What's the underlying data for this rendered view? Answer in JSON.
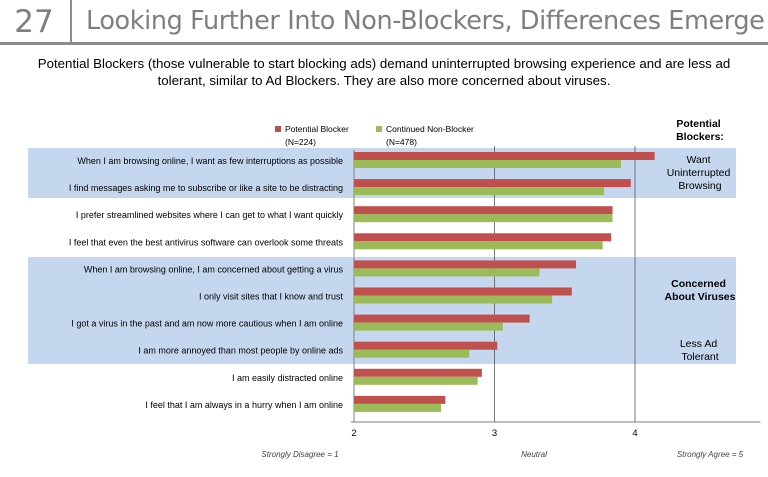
{
  "slide": {
    "number": "27",
    "title": "Looking Further Into Non-Blockers, Differences Emerge",
    "subtitle_lines": [
      "Potential Blockers (those vulnerable to start blocking ads) demand uninterrupted browsing experience and are less ad",
      "tolerant, similar to Ad Blockers.  They are also more concerned about viruses."
    ]
  },
  "colors": {
    "potential_blocker": "#c0504d",
    "continued_non_blocker": "#9bbb59",
    "highlight_band": "#c5d7ee",
    "header_gray": "#7f7f7f"
  },
  "chart_data": {
    "type": "bar",
    "orientation": "horizontal",
    "categories": [
      "When I am browsing online, I want as few interruptions as possible",
      "I find messages asking me to subscribe or like a site to be distracting",
      "I prefer streamlined websites where I can get to what I want quickly",
      "I feel that even the best antivirus software can overlook some threats",
      "When I am browsing online, I am concerned about getting a virus",
      "I only visit sites that I know and trust",
      "I got a virus in the past and am now more cautious when I am online",
      "I am more annoyed than most people by online ads",
      "I am easily distracted online",
      "I feel that I am always in a hurry when I am online"
    ],
    "series": [
      {
        "name": "Potential Blocker",
        "n_label": "(N=224)",
        "values": [
          4.14,
          3.97,
          3.84,
          3.83,
          3.58,
          3.55,
          3.25,
          3.02,
          2.91,
          2.65
        ]
      },
      {
        "name": "Continued Non-Blocker",
        "n_label": "(N=478)",
        "values": [
          3.9,
          3.78,
          3.84,
          3.77,
          3.32,
          3.41,
          3.06,
          2.82,
          2.88,
          2.62
        ]
      }
    ],
    "xlim": [
      2,
      5
    ],
    "xticks": [
      "2",
      "3",
      "4"
    ],
    "gridlines_at": [
      3,
      4
    ],
    "scale_labels": [
      "Strongly Disagree = 1",
      "Neutral",
      "Strongly Agree = 5"
    ],
    "side_header": "Potential Blockers:",
    "side_annotations": [
      "Want Uninterrupted Browsing",
      "Concerned About Viruses",
      "Less Ad Tolerant"
    ]
  }
}
